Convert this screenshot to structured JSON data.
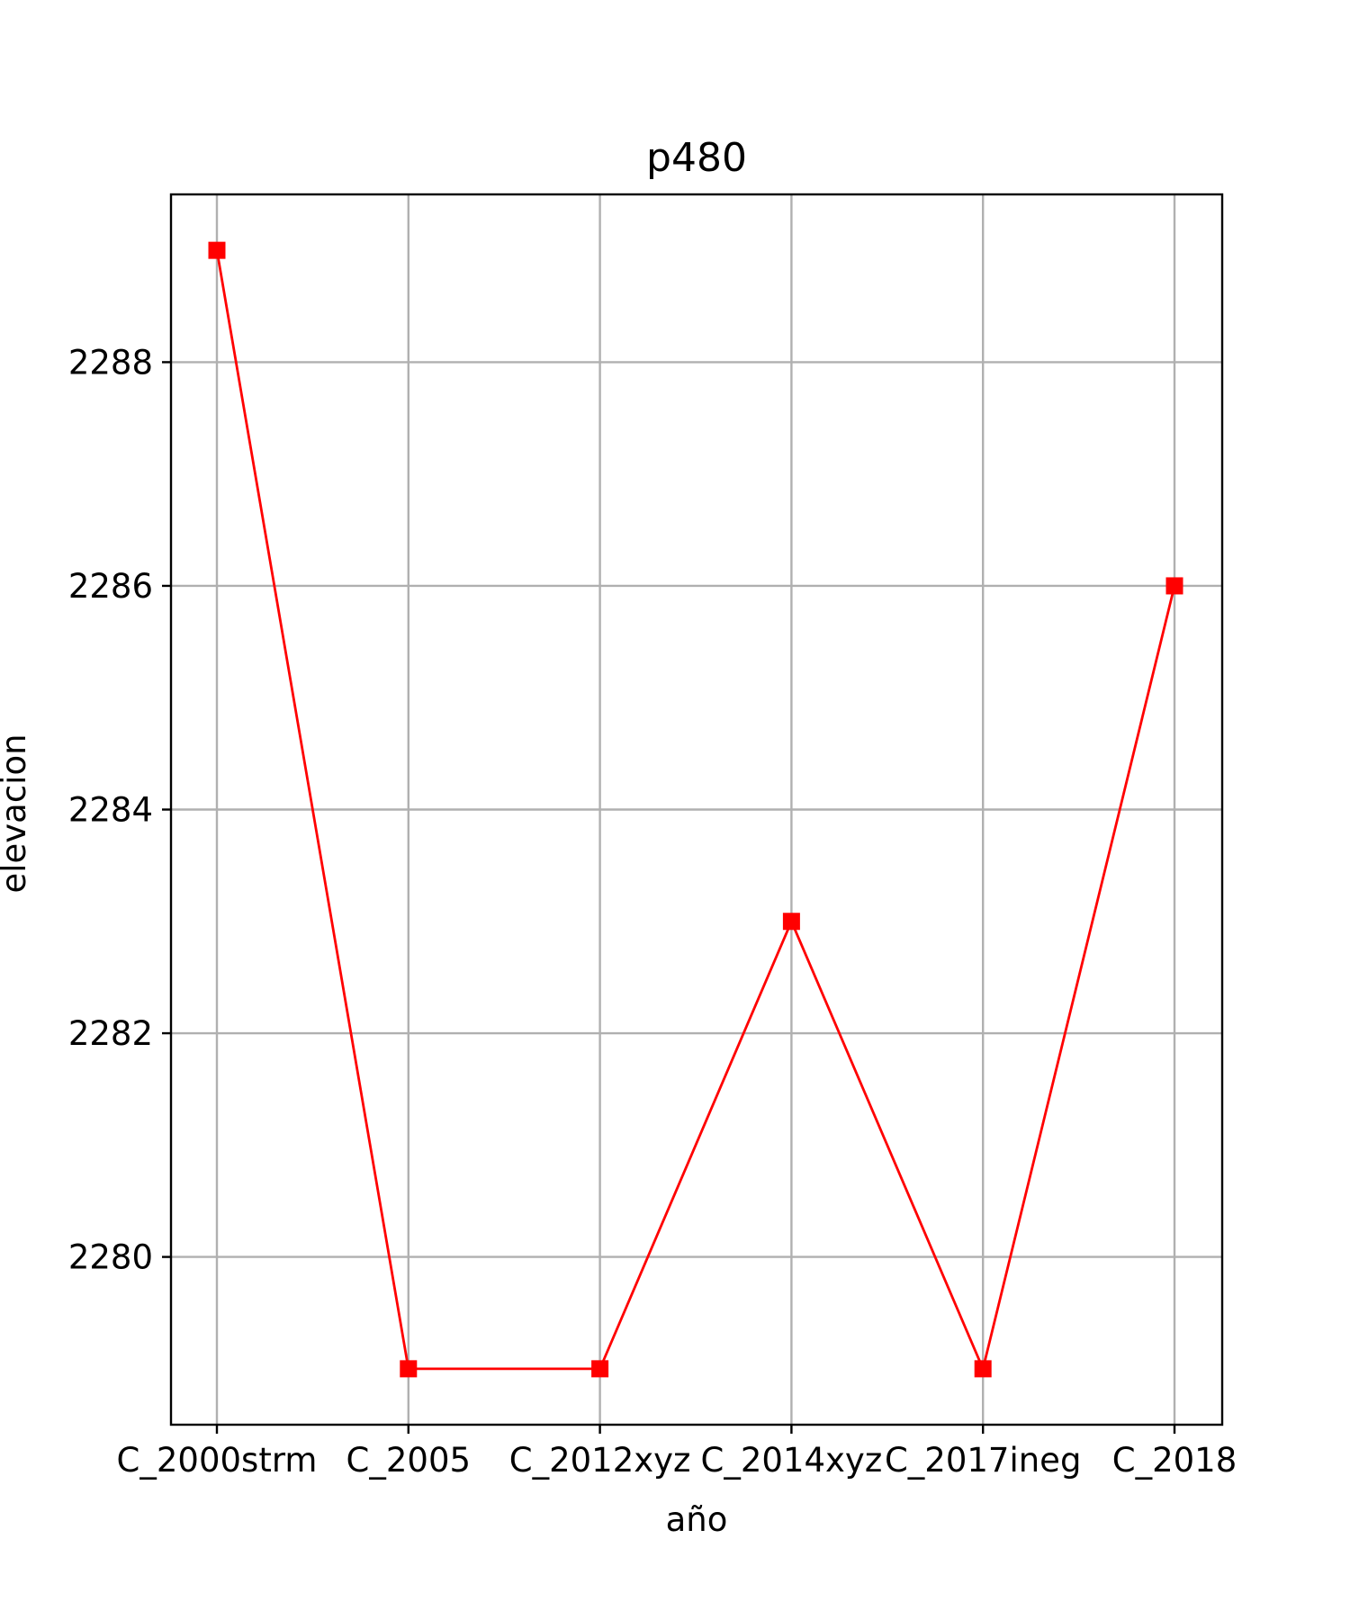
{
  "chart_data": {
    "type": "line",
    "title": "p480",
    "xlabel": "año",
    "ylabel": "elevacion",
    "categories": [
      "C_2000strm",
      "C_2005",
      "C_2012xyz",
      "C_2014xyz",
      "C_2017ineg",
      "C_2018"
    ],
    "series": [
      {
        "values": [
          2289,
          2279,
          2279,
          2283,
          2279,
          2286
        ],
        "color": "#ff0000",
        "marker": "square"
      }
    ],
    "ylim": [
      2278.5,
      2289.5
    ],
    "yticks": [
      2280,
      2282,
      2284,
      2286,
      2288
    ],
    "grid": true
  }
}
